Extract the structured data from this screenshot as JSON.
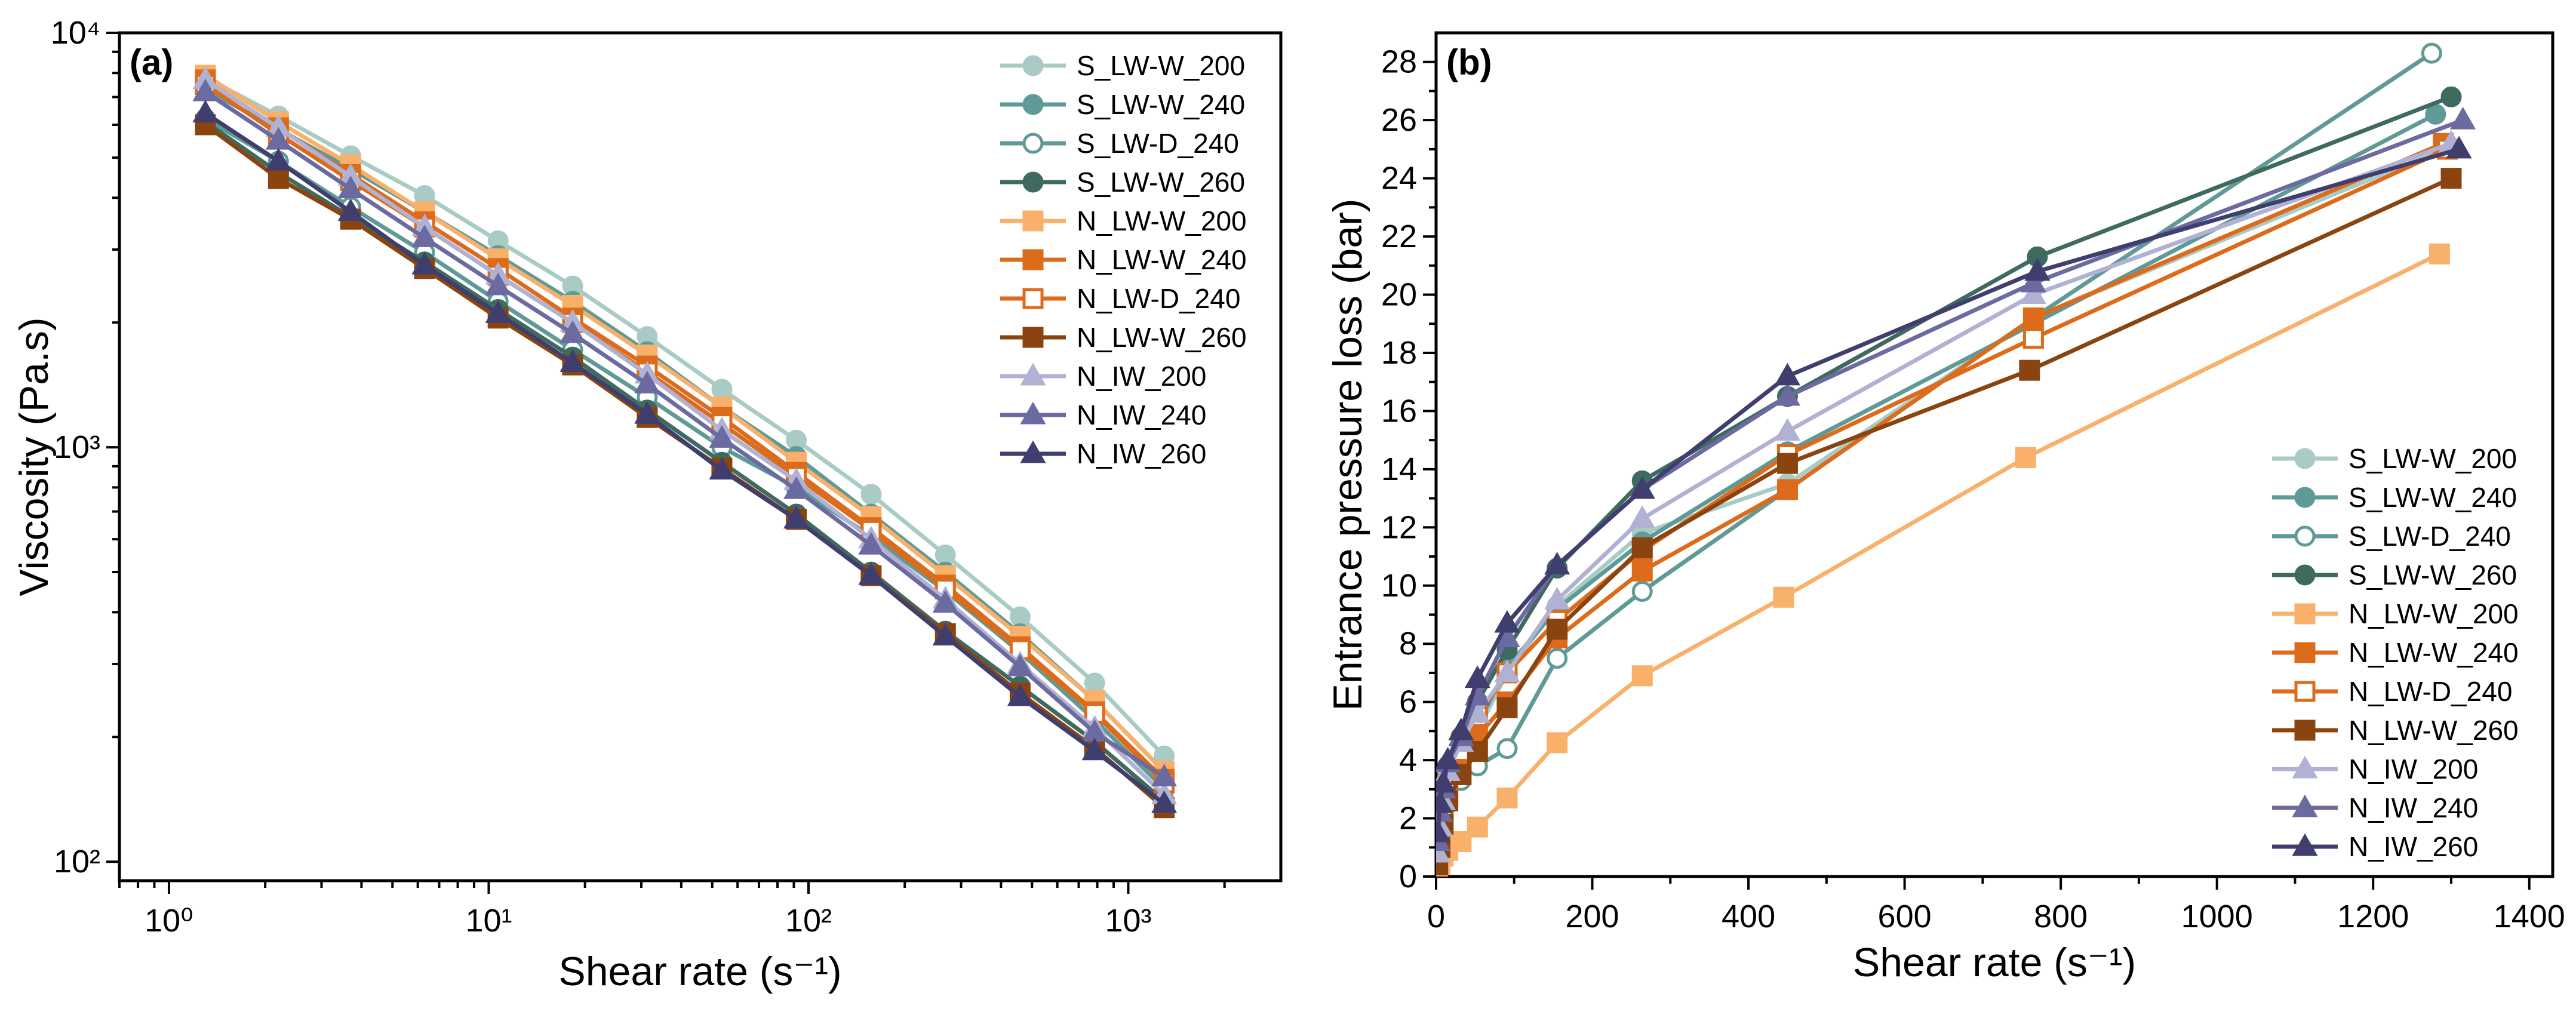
{
  "chart_data": [
    {
      "panel": "(a)",
      "type": "line",
      "x_scale": "log",
      "y_scale": "log",
      "xlabel": "Shear rate (s⁻¹)",
      "ylabel": "Viscosity (Pa.s)",
      "xlim": [
        0.7,
        3000
      ],
      "ylim": [
        90,
        10000
      ],
      "xticks": [
        1,
        10,
        100,
        1000
      ],
      "xtick_labels": [
        "10⁰",
        "10¹",
        "10²",
        "10³"
      ],
      "yticks": [
        100,
        1000,
        10000
      ],
      "ytick_labels": [
        "10²",
        "10³",
        "10⁴"
      ],
      "legend_position": "top-right",
      "x": [
        1.3,
        2.2,
        3.7,
        6.3,
        10.7,
        18.3,
        31.3,
        53.6,
        91.6,
        157,
        268,
        459,
        785,
        1295
      ],
      "series": [
        {
          "name": "S_LW-W_200",
          "color": "#a9cbc6",
          "marker": "circle",
          "fill": "filled",
          "values": [
            7800,
            6300,
            5050,
            4050,
            3150,
            2450,
            1850,
            1380,
            1040,
            770,
            550,
            390,
            270,
            180
          ]
        },
        {
          "name": "S_LW-W_240",
          "color": "#5f9a97",
          "marker": "circle",
          "fill": "filled",
          "values": [
            7300,
            5850,
            4700,
            3700,
            2900,
            2250,
            1700,
            1250,
            950,
            690,
            500,
            355,
            245,
            165
          ]
        },
        {
          "name": "S_LW-D_240",
          "color": "#5f9a97",
          "marker": "circle",
          "fill": "open",
          "values": [
            6200,
            4900,
            3800,
            2950,
            2250,
            1720,
            1320,
            1000,
            800,
            610,
            450,
            320,
            220,
            150
          ]
        },
        {
          "name": "S_LW-W_260",
          "color": "#3e6a60",
          "marker": "circle",
          "fill": "filled",
          "values": [
            6100,
            4600,
            3600,
            2800,
            2150,
            1650,
            1230,
            920,
            690,
            500,
            360,
            265,
            195,
            140
          ]
        },
        {
          "name": "N_LW-W_200",
          "color": "#f9b06b",
          "marker": "square",
          "fill": "filled",
          "values": [
            7900,
            6100,
            4800,
            3700,
            2850,
            2200,
            1670,
            1250,
            920,
            680,
            490,
            350,
            245,
            165
          ]
        },
        {
          "name": "N_LW-W_240",
          "color": "#dc6b1b",
          "marker": "square",
          "fill": "filled",
          "values": [
            7700,
            5900,
            4550,
            3500,
            2700,
            2050,
            1570,
            1180,
            870,
            640,
            465,
            330,
            230,
            158
          ]
        },
        {
          "name": "N_LW-D_240",
          "color": "#dc6b1b",
          "marker": "square",
          "fill": "open",
          "values": [
            7500,
            5700,
            4400,
            3400,
            2600,
            2000,
            1520,
            1140,
            850,
            630,
            455,
            325,
            228,
            155
          ]
        },
        {
          "name": "N_LW-W_260",
          "color": "#8a4410",
          "marker": "square",
          "fill": "filled",
          "values": [
            6000,
            4450,
            3550,
            2700,
            2050,
            1580,
            1180,
            890,
            670,
            490,
            355,
            255,
            188,
            135
          ]
        },
        {
          "name": "N_IW_200",
          "color": "#b0b1d3",
          "marker": "triangle",
          "fill": "filled",
          "values": [
            7700,
            5900,
            4500,
            3400,
            2600,
            2000,
            1500,
            1100,
            830,
            600,
            430,
            300,
            210,
            145
          ]
        },
        {
          "name": "N_IW_240",
          "color": "#6b6aa1",
          "marker": "triangle",
          "fill": "filled",
          "values": [
            7200,
            5500,
            4200,
            3200,
            2450,
            1880,
            1420,
            1050,
            790,
            580,
            420,
            295,
            205,
            160
          ]
        },
        {
          "name": "N_IW_260",
          "color": "#3f3e6e",
          "marker": "triangle",
          "fill": "filled",
          "values": [
            6400,
            4900,
            3700,
            2750,
            2100,
            1600,
            1200,
            880,
            670,
            490,
            350,
            250,
            185,
            138
          ]
        }
      ]
    },
    {
      "panel": "(b)",
      "type": "line",
      "x_scale": "linear",
      "y_scale": "linear",
      "xlabel": "Shear rate (s⁻¹)",
      "ylabel": "Entrance pressure loss (bar)",
      "xlim": [
        0,
        1430
      ],
      "ylim": [
        0,
        29
      ],
      "xticks": [
        0,
        200,
        400,
        600,
        800,
        1000,
        1200,
        1400
      ],
      "xtick_labels": [
        "0",
        "200",
        "400",
        "600",
        "800",
        "1000",
        "1200",
        "1400"
      ],
      "yticks": [
        0,
        2,
        4,
        6,
        8,
        10,
        12,
        14,
        16,
        18,
        20,
        22,
        24,
        26,
        28
      ],
      "ytick_labels": [
        "0",
        "2",
        "4",
        "6",
        "8",
        "10",
        "12",
        "14",
        "16",
        "18",
        "20",
        "22",
        "24",
        "26",
        "28"
      ],
      "legend_position": "bottom-right",
      "series": [
        {
          "name": "S_LW-W_200",
          "color": "#a9cbc6",
          "marker": "circle",
          "fill": "filled",
          "x": [
            2,
            5,
            9,
            15,
            32,
            53,
            91,
            155,
            264,
            450,
            765,
            1290
          ],
          "values": [
            0.5,
            1.3,
            2.2,
            3.0,
            4.4,
            5.0,
            7.0,
            9.3,
            11.8,
            13.5,
            19.2,
            25.0
          ]
        },
        {
          "name": "S_LW-W_240",
          "color": "#5f9a97",
          "marker": "circle",
          "fill": "filled",
          "x": [
            2,
            5,
            9,
            15,
            32,
            53,
            91,
            155,
            264,
            450,
            765,
            1280
          ],
          "values": [
            0.6,
            1.5,
            2.5,
            3.3,
            4.2,
            5.2,
            7.2,
            9.2,
            11.5,
            14.6,
            19.0,
            26.2
          ]
        },
        {
          "name": "S_LW-D_240",
          "color": "#5f9a97",
          "marker": "circle",
          "fill": "open",
          "x": [
            2,
            5,
            9,
            15,
            32,
            53,
            91,
            155,
            264,
            450,
            765,
            1275
          ],
          "values": [
            0.4,
            1.0,
            1.8,
            2.5,
            3.3,
            3.8,
            4.4,
            7.5,
            9.8,
            13.3,
            19.2,
            28.3
          ]
        },
        {
          "name": "S_LW-W_260",
          "color": "#3e6a60",
          "marker": "circle",
          "fill": "filled",
          "x": [
            2,
            5,
            9,
            15,
            32,
            53,
            91,
            155,
            264,
            450,
            770,
            1300
          ],
          "values": [
            0.9,
            1.8,
            2.8,
            3.8,
            4.8,
            6.0,
            7.8,
            10.6,
            13.6,
            16.5,
            21.3,
            26.8
          ]
        },
        {
          "name": "N_LW-W_200",
          "color": "#f9b06b",
          "marker": "square",
          "fill": "filled",
          "x": [
            2,
            5,
            9,
            15,
            32,
            53,
            91,
            155,
            264,
            445,
            755,
            1285
          ],
          "values": [
            0.2,
            0.4,
            0.7,
            0.9,
            1.2,
            1.7,
            2.7,
            4.6,
            6.9,
            9.6,
            14.4,
            21.4
          ]
        },
        {
          "name": "N_LW-W_240",
          "color": "#dc6b1b",
          "marker": "square",
          "fill": "filled",
          "x": [
            2,
            5,
            9,
            15,
            32,
            53,
            91,
            155,
            264,
            450,
            765,
            1290
          ],
          "values": [
            0.5,
            1.2,
            2.0,
            2.8,
            3.8,
            4.8,
            6.0,
            8.2,
            10.5,
            13.3,
            19.2,
            25.2
          ]
        },
        {
          "name": "N_LW-D_240",
          "color": "#dc6b1b",
          "marker": "square",
          "fill": "open",
          "x": [
            2,
            5,
            9,
            15,
            32,
            53,
            91,
            155,
            264,
            450,
            765,
            1295
          ],
          "values": [
            0.6,
            1.4,
            2.3,
            3.2,
            4.3,
            5.5,
            7.0,
            8.8,
            11.2,
            14.5,
            18.5,
            25.0
          ]
        },
        {
          "name": "N_LW-W_260",
          "color": "#8a4410",
          "marker": "square",
          "fill": "filled",
          "x": [
            2,
            5,
            9,
            15,
            32,
            53,
            91,
            155,
            264,
            450,
            760,
            1300
          ],
          "values": [
            0.4,
            1.0,
            1.8,
            2.6,
            3.5,
            4.3,
            5.8,
            8.5,
            11.3,
            14.2,
            17.4,
            24.0
          ]
        },
        {
          "name": "N_IW_200",
          "color": "#b0b1d3",
          "marker": "triangle",
          "fill": "filled",
          "x": [
            2,
            5,
            9,
            15,
            32,
            53,
            91,
            155,
            264,
            450,
            765,
            1300
          ],
          "values": [
            0.8,
            1.7,
            2.6,
            3.6,
            4.6,
            5.6,
            7.0,
            9.5,
            12.3,
            15.3,
            20.0,
            25.2
          ]
        },
        {
          "name": "N_IW_240",
          "color": "#6b6aa1",
          "marker": "triangle",
          "fill": "filled",
          "x": [
            2,
            5,
            9,
            15,
            32,
            53,
            91,
            155,
            264,
            450,
            765,
            1315
          ],
          "values": [
            1.2,
            2.2,
            3.0,
            3.9,
            4.8,
            6.2,
            8.2,
            10.7,
            13.3,
            16.5,
            20.4,
            26.0
          ]
        },
        {
          "name": "N_IW_260",
          "color": "#3f3e6e",
          "marker": "triangle",
          "fill": "filled",
          "x": [
            2,
            5,
            9,
            15,
            32,
            53,
            91,
            155,
            264,
            450,
            770,
            1310
          ],
          "values": [
            1.5,
            2.5,
            3.2,
            4.0,
            5.0,
            6.8,
            8.7,
            10.7,
            13.3,
            17.2,
            20.8,
            25.0
          ]
        }
      ]
    }
  ]
}
